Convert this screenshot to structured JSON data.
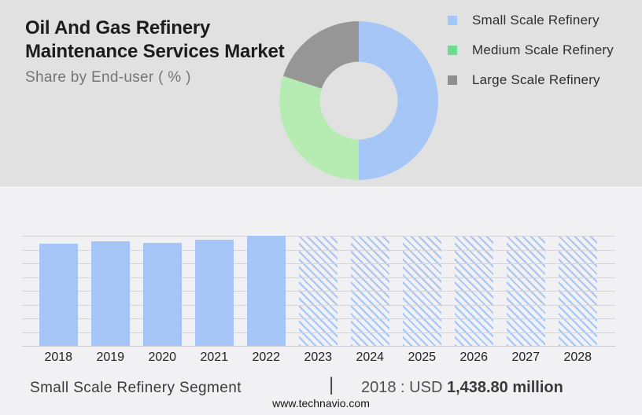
{
  "header": {
    "title_line1": "Oil And Gas Refinery",
    "title_line2": "Maintenance Services Market",
    "subtitle": "Share by End-user ( % )"
  },
  "legend": {
    "position": "right",
    "items": [
      {
        "label": "Small Scale Refinery",
        "color": "#a4c6f8"
      },
      {
        "label": "Medium Scale Refinery",
        "color": "#6ede8e"
      },
      {
        "label": "Large Scale Refinery",
        "color": "#8f8f8f"
      }
    ]
  },
  "chart_data": [
    {
      "type": "pie",
      "subtype": "donut",
      "title": "Share by End-user ( % )",
      "labels": [
        "Small Scale Refinery",
        "Medium Scale Refinery",
        "Large Scale Refinery"
      ],
      "values": [
        50,
        30,
        20
      ],
      "colors": [
        "#a6c6f8",
        "#b6ecb2",
        "#969696"
      ],
      "start_angle_deg": 0,
      "direction": "clockwise",
      "inner_radius_ratio": 0.49,
      "hole_color": "#e1e1e1",
      "legend_position": "right",
      "data_labels": false
    },
    {
      "type": "bar",
      "title": "",
      "xlabel": "",
      "ylabel": "",
      "categories": [
        "2018",
        "2019",
        "2020",
        "2021",
        "2022",
        "2023",
        "2024",
        "2025",
        "2026",
        "2027",
        "2028"
      ],
      "values_pct_of_max": [
        92.9,
        95.0,
        93.6,
        96.7,
        100,
        100,
        100,
        100,
        100,
        100,
        100
      ],
      "historical_years": [
        "2018",
        "2019",
        "2020",
        "2021",
        "2022"
      ],
      "forecast_years": [
        "2023",
        "2024",
        "2025",
        "2026",
        "2027",
        "2028"
      ],
      "forecast_style": "diagonal-hatch",
      "bar_color": "#a6c5f7",
      "grid": true,
      "gridline_count": 9,
      "y_axis_labels_visible": false,
      "annotation": "2018 : USD 1,438.80 million"
    }
  ],
  "footer": {
    "segment_label": "Small Scale Refinery Segment",
    "separator": "|",
    "metric_prefix": "2018 : USD",
    "metric_value": "1,438.80 million",
    "website": "www.technavio.com"
  },
  "colors": {
    "top_panel_bg": "#e1e1e1",
    "bottom_panel_bg": "#f1f1f4",
    "gridline": "#d5d5d9",
    "title_text": "#1c1c1c",
    "subtitle_text": "#757575"
  }
}
